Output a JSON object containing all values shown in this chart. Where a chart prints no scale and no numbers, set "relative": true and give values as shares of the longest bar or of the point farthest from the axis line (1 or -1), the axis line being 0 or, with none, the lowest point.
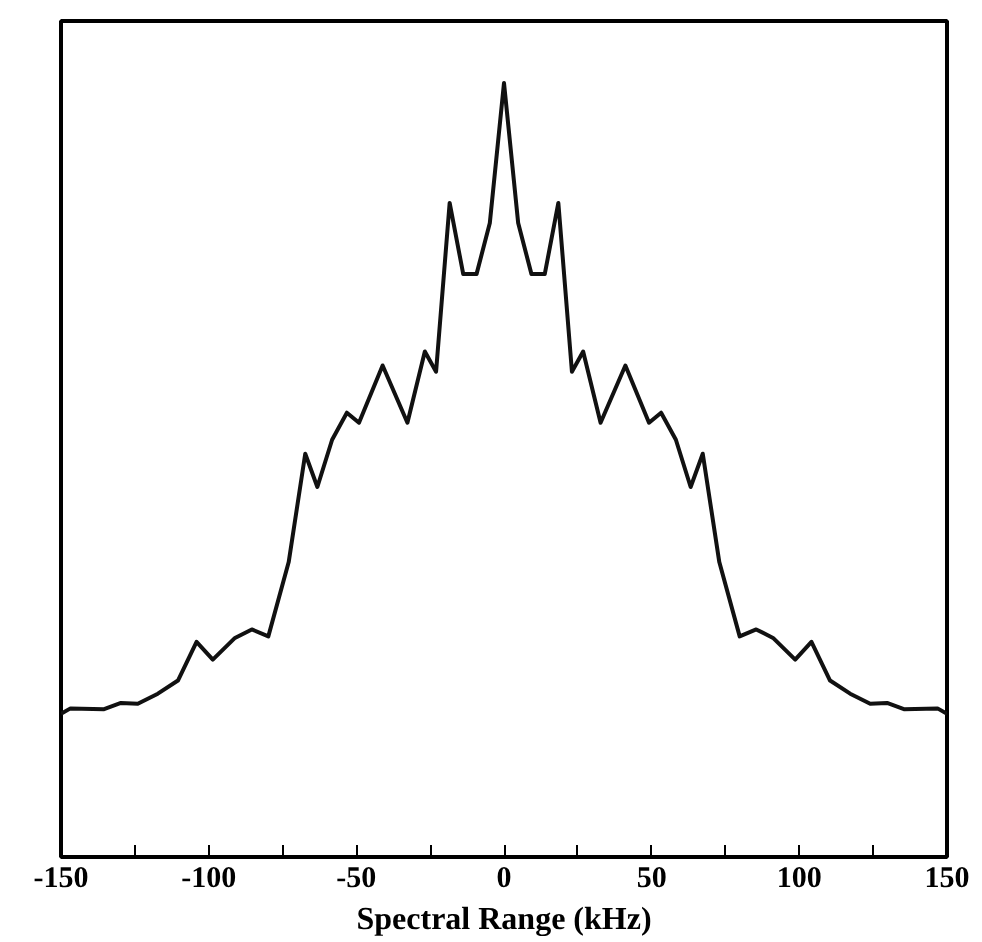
{
  "chart_data": {
    "type": "line",
    "relative": true,
    "xlabel": "Spectral Range (kHz)",
    "xlim": [
      -150,
      150
    ],
    "xticks": [
      -150,
      {
        "value": -125,
        "label": null
      },
      -100,
      {
        "value": -75,
        "label": null
      },
      -50,
      {
        "value": -25,
        "label": null
      },
      0,
      {
        "value": 25,
        "label": null
      },
      50,
      {
        "value": 75,
        "label": null
      },
      100,
      {
        "value": 125,
        "label": null
      },
      150
    ],
    "x": [
      -150,
      -146.8,
      -135.4,
      -129.7,
      -124,
      -117.2,
      -110.4,
      -104.1,
      -98.6,
      -91.1,
      -85.4,
      -79.8,
      -72.9,
      -67.3,
      -63.2,
      -58.2,
      -53.2,
      -49.1,
      -41.1,
      -32.7,
      -26.8,
      -23,
      -18.4,
      -13.8,
      -9.3,
      -4.8,
      0,
      4.8,
      9.3,
      13.8,
      18.4,
      23,
      26.8,
      32.7,
      41.1,
      49.1,
      53.2,
      58.2,
      63.2,
      67.3,
      72.9,
      79.8,
      85.4,
      91.1,
      98.6,
      104.1,
      110.4,
      117.2,
      124,
      129.7,
      135.4,
      146.8,
      150
    ],
    "series": [
      {
        "color": "#111111",
        "values": [
          0.185,
          0.192,
          0.191,
          0.199,
          0.198,
          0.211,
          0.228,
          0.278,
          0.255,
          0.283,
          0.294,
          0.285,
          0.381,
          0.521,
          0.478,
          0.539,
          0.574,
          0.561,
          0.635,
          0.561,
          0.653,
          0.627,
          0.845,
          0.753,
          0.753,
          0.819,
          1.0,
          0.819,
          0.753,
          0.753,
          0.845,
          0.627,
          0.653,
          0.561,
          0.635,
          0.561,
          0.574,
          0.539,
          0.478,
          0.521,
          0.381,
          0.285,
          0.294,
          0.283,
          0.255,
          0.278,
          0.228,
          0.211,
          0.198,
          0.199,
          0.191,
          0.192,
          0.185
        ]
      }
    ],
    "grid": false
  }
}
